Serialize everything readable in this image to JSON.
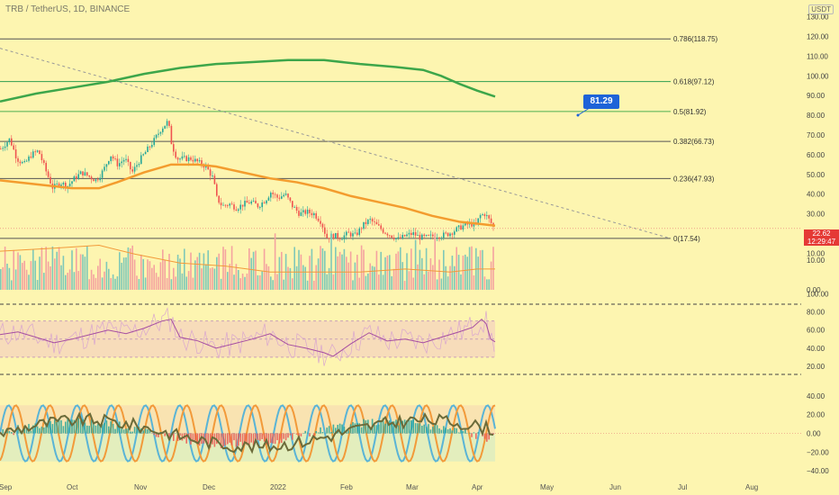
{
  "header": {
    "title": "TRB / TetherUS, 1D, BINANCE",
    "currency_badge": "USDT"
  },
  "price_tag": {
    "value": "22.62",
    "countdown": "12:29:47",
    "color": "#e53935"
  },
  "callout": {
    "label": "81.29",
    "color": "#1e63d8"
  },
  "chart_data": [
    {
      "type": "candlestick",
      "panel": "price",
      "y_ticks": [
        130,
        120,
        110,
        100,
        90,
        80,
        70,
        60,
        50,
        40,
        30,
        20,
        10
      ],
      "y_tick_labels": [
        "130.00",
        "120.00",
        "110.00",
        "100.00",
        "90.00",
        "80.00",
        "70.00",
        "60.00",
        "50.00",
        "40.00",
        "30.00",
        "20.00",
        "10.00"
      ],
      "ylim": [
        0,
        135
      ],
      "x_ticks": [
        "Sep",
        "Oct",
        "Nov",
        "Dec",
        "2022",
        "Feb",
        "Mar",
        "Apr",
        "May",
        "Jun",
        "Jul",
        "Aug"
      ],
      "fib_levels": [
        {
          "ratio": "0.786",
          "value": 118.75,
          "label": "0.786(118.75)",
          "color": "#555555"
        },
        {
          "ratio": "0.618",
          "value": 97.12,
          "label": "0.618(97.12)",
          "color": "#2e9e4f"
        },
        {
          "ratio": "0.5",
          "value": 81.92,
          "label": "0.5(81.92)",
          "color": "#4caf50"
        },
        {
          "ratio": "0.382",
          "value": 66.73,
          "label": "0.382(66.73)",
          "color": "#555555"
        },
        {
          "ratio": "0.236",
          "value": 47.93,
          "label": "0.236(47.93)",
          "color": "#555555"
        },
        {
          "ratio": "0",
          "value": 17.54,
          "label": "0(17.54)",
          "color": "#555555"
        }
      ],
      "close_path": [
        [
          0,
          63
        ],
        [
          10,
          68
        ],
        [
          18,
          58
        ],
        [
          26,
          55
        ],
        [
          34,
          60
        ],
        [
          42,
          62
        ],
        [
          50,
          52
        ],
        [
          58,
          43
        ],
        [
          66,
          46
        ],
        [
          74,
          44
        ],
        [
          82,
          48
        ],
        [
          90,
          51
        ],
        [
          98,
          49
        ],
        [
          106,
          47
        ],
        [
          114,
          52
        ],
        [
          122,
          60
        ],
        [
          130,
          55
        ],
        [
          138,
          58
        ],
        [
          146,
          51
        ],
        [
          154,
          57
        ],
        [
          162,
          62
        ],
        [
          170,
          67
        ],
        [
          178,
          73
        ],
        [
          186,
          77
        ],
        [
          190,
          65
        ],
        [
          196,
          58
        ],
        [
          204,
          58
        ],
        [
          212,
          58
        ],
        [
          220,
          56
        ],
        [
          228,
          54
        ],
        [
          236,
          48
        ],
        [
          240,
          38
        ],
        [
          246,
          34
        ],
        [
          254,
          35
        ],
        [
          262,
          33
        ],
        [
          270,
          35
        ],
        [
          278,
          36
        ],
        [
          286,
          34
        ],
        [
          294,
          37
        ],
        [
          300,
          41
        ],
        [
          308,
          38
        ],
        [
          316,
          40
        ],
        [
          324,
          34
        ],
        [
          332,
          30
        ],
        [
          340,
          31
        ],
        [
          348,
          30
        ],
        [
          356,
          26
        ],
        [
          362,
          18
        ],
        [
          370,
          19
        ],
        [
          378,
          18
        ],
        [
          386,
          20
        ],
        [
          394,
          19
        ],
        [
          402,
          24
        ],
        [
          410,
          27
        ],
        [
          418,
          24
        ],
        [
          426,
          21
        ],
        [
          434,
          19
        ],
        [
          442,
          17
        ],
        [
          450,
          19
        ],
        [
          458,
          20
        ],
        [
          466,
          18
        ],
        [
          474,
          18
        ],
        [
          482,
          19
        ],
        [
          490,
          19
        ],
        [
          498,
          20
        ],
        [
          506,
          22
        ],
        [
          514,
          24
        ],
        [
          522,
          25
        ],
        [
          528,
          24
        ],
        [
          532,
          29
        ],
        [
          538,
          30
        ],
        [
          544,
          26
        ],
        [
          548,
          22.6
        ]
      ],
      "ma_orange": [
        [
          0,
          47
        ],
        [
          40,
          45
        ],
        [
          80,
          43
        ],
        [
          110,
          43
        ],
        [
          130,
          46
        ],
        [
          160,
          51
        ],
        [
          190,
          55
        ],
        [
          220,
          55
        ],
        [
          240,
          54
        ],
        [
          270,
          51
        ],
        [
          300,
          48
        ],
        [
          330,
          46
        ],
        [
          360,
          43
        ],
        [
          390,
          39
        ],
        [
          420,
          36
        ],
        [
          450,
          33
        ],
        [
          480,
          29
        ],
        [
          510,
          26
        ],
        [
          530,
          25
        ],
        [
          550,
          24
        ]
      ],
      "ma_green": [
        [
          0,
          87
        ],
        [
          40,
          91
        ],
        [
          80,
          94
        ],
        [
          120,
          97
        ],
        [
          160,
          101
        ],
        [
          200,
          104
        ],
        [
          240,
          106
        ],
        [
          280,
          107
        ],
        [
          320,
          108
        ],
        [
          360,
          108
        ],
        [
          400,
          106
        ],
        [
          440,
          104.5
        ],
        [
          470,
          103
        ],
        [
          490,
          100
        ],
        [
          510,
          96
        ],
        [
          530,
          92.5
        ],
        [
          550,
          89.5
        ]
      ],
      "trendline": [
        [
          0,
          114
        ],
        [
          745,
          17.5
        ]
      ],
      "callout_value": 81.29
    },
    {
      "type": "bar",
      "panel": "volume",
      "y_ticks": [
        10,
        0
      ],
      "y_tick_labels": [
        "10.00",
        "0.00"
      ],
      "ylim": [
        0,
        22
      ],
      "ma_line": [
        [
          0,
          13
        ],
        [
          60,
          14
        ],
        [
          110,
          15
        ],
        [
          150,
          12
        ],
        [
          200,
          9
        ],
        [
          250,
          8
        ],
        [
          300,
          6
        ],
        [
          350,
          6
        ],
        [
          400,
          6
        ],
        [
          450,
          7
        ],
        [
          500,
          6
        ],
        [
          530,
          7
        ],
        [
          550,
          7
        ]
      ]
    },
    {
      "type": "line",
      "panel": "rsi",
      "y_ticks": [
        100,
        80,
        60,
        40,
        20
      ],
      "y_tick_labels": [
        "100.00",
        "80.00",
        "60.00",
        "40.00",
        "20.00"
      ],
      "ylim": [
        10,
        105
      ],
      "band": [
        30,
        70
      ],
      "midline": 50,
      "rsi": [
        [
          0,
          55
        ],
        [
          20,
          58
        ],
        [
          40,
          52
        ],
        [
          60,
          46
        ],
        [
          80,
          50
        ],
        [
          100,
          55
        ],
        [
          120,
          60
        ],
        [
          140,
          56
        ],
        [
          160,
          62
        ],
        [
          180,
          70
        ],
        [
          190,
          72
        ],
        [
          200,
          52
        ],
        [
          220,
          48
        ],
        [
          240,
          40
        ],
        [
          260,
          45
        ],
        [
          280,
          50
        ],
        [
          300,
          56
        ],
        [
          320,
          44
        ],
        [
          340,
          40
        ],
        [
          360,
          35
        ],
        [
          370,
          31
        ],
        [
          390,
          45
        ],
        [
          410,
          57
        ],
        [
          430,
          48
        ],
        [
          450,
          50
        ],
        [
          470,
          46
        ],
        [
          490,
          52
        ],
        [
          510,
          58
        ],
        [
          525,
          63
        ],
        [
          535,
          72
        ],
        [
          540,
          67
        ],
        [
          545,
          50
        ],
        [
          550,
          47
        ]
      ]
    },
    {
      "type": "line",
      "panel": "stoch",
      "y_ticks": [
        40,
        20,
        0,
        -20,
        -40
      ],
      "y_tick_labels": [
        "40.00",
        "20.00",
        "0.00",
        "−20.00",
        "−40.00"
      ],
      "ylim": [
        -42,
        42
      ],
      "band": [
        -30,
        30
      ],
      "series": [
        {
          "name": "k",
          "color": "#5ab4d6"
        },
        {
          "name": "d",
          "color": "#f29a3a"
        },
        {
          "name": "signal",
          "color": "#6b6b3a"
        }
      ]
    }
  ]
}
